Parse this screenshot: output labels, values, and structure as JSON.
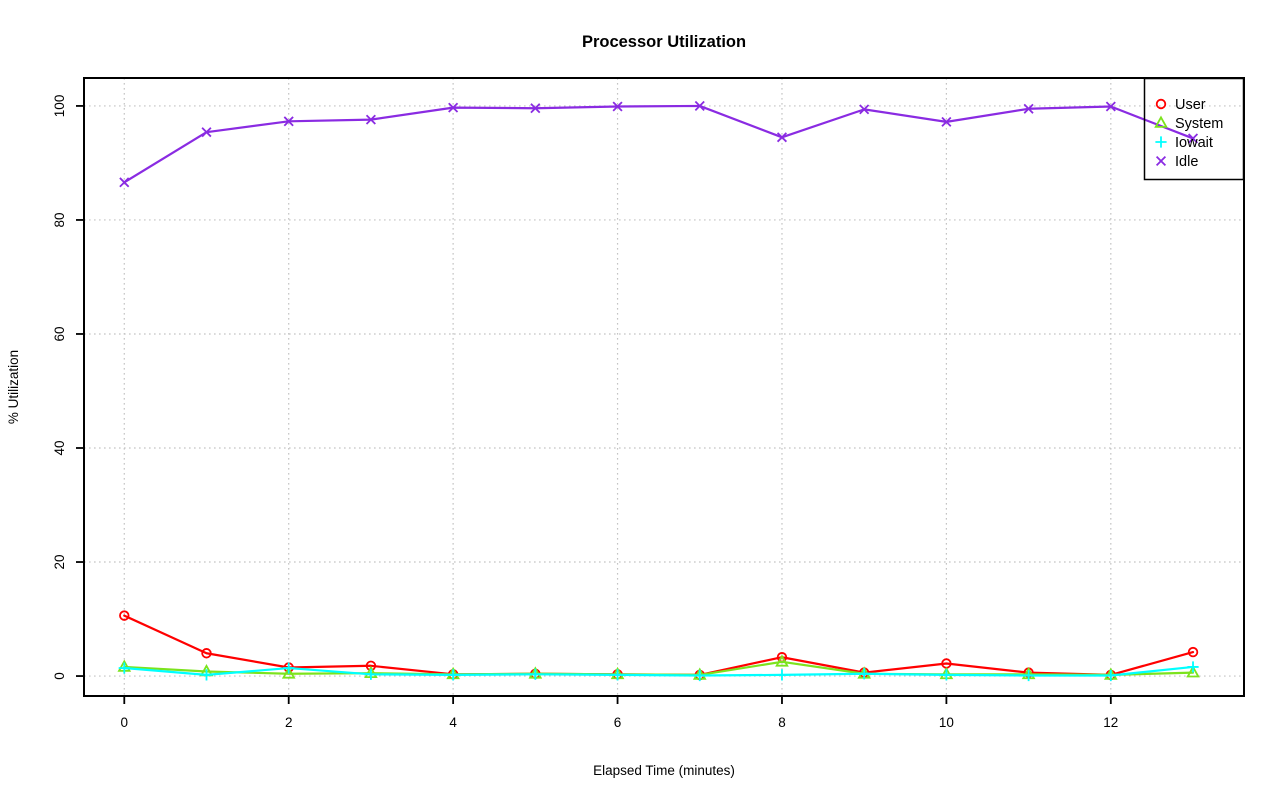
{
  "chart_data": {
    "type": "line",
    "title": "Processor Utilization",
    "xlabel": "Elapsed Time (minutes)",
    "ylabel": "% Utilization",
    "x": [
      0,
      1,
      2,
      3,
      4,
      5,
      6,
      7,
      8,
      9,
      10,
      11,
      12,
      13
    ],
    "x_ticks": [
      0,
      2,
      4,
      6,
      8,
      10,
      12
    ],
    "y_ticks": [
      0,
      20,
      40,
      60,
      80,
      100
    ],
    "xlim": [
      -0.49,
      13.62
    ],
    "ylim": [
      -3.5,
      104.9
    ],
    "grid": true,
    "grid_color": "#c3c3c3",
    "legend_position": "topright",
    "series": [
      {
        "name": "User",
        "color": "#ff0000",
        "marker": "circle",
        "values": [
          10.6,
          4.0,
          1.5,
          1.8,
          0.3,
          0.4,
          0.3,
          0.2,
          3.3,
          0.6,
          2.2,
          0.6,
          0.2,
          4.2
        ]
      },
      {
        "name": "System",
        "color": "#7ce31d",
        "marker": "triangle",
        "values": [
          1.6,
          0.8,
          0.4,
          0.5,
          0.3,
          0.4,
          0.3,
          0.2,
          2.5,
          0.4,
          0.3,
          0.3,
          0.2,
          0.6
        ]
      },
      {
        "name": "Iowait",
        "color": "#00ffff",
        "marker": "plus",
        "values": [
          1.4,
          0.2,
          1.4,
          0.3,
          0.2,
          0.3,
          0.2,
          0.1,
          0.2,
          0.4,
          0.2,
          0.1,
          0.1,
          1.6
        ]
      },
      {
        "name": "Idle",
        "color": "#8a2be2",
        "marker": "x",
        "values": [
          86.6,
          95.4,
          97.3,
          97.6,
          99.7,
          99.6,
          99.9,
          100.0,
          94.5,
          99.4,
          97.2,
          99.5,
          99.9,
          94.3
        ]
      }
    ],
    "legend": [
      "User",
      "System",
      "Iowait",
      "Idle"
    ]
  }
}
